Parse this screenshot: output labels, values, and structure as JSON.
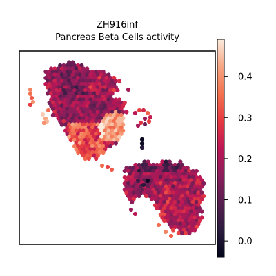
{
  "chart_data": {
    "type": "scatter",
    "subtype": "spatial-hexbin",
    "title": "ZH916inf",
    "subtitle": "Pancreas Beta Cells activity",
    "xlabel": "",
    "ylabel": "",
    "frame_ticks": false,
    "grid": false,
    "legend": "colorbar-right",
    "colormap": "rocket",
    "colorbar": {
      "range": [
        -0.04,
        0.49
      ],
      "ticks": [
        0.0,
        0.1,
        0.2,
        0.3,
        0.4
      ],
      "tick_labels": [
        "0.0",
        "0.1",
        "0.2",
        "0.3",
        "0.4"
      ]
    },
    "regions": [
      {
        "name": "upper tissue lobe",
        "activity_min": -0.04,
        "activity_max": 0.49,
        "dominant_activity": 0.2,
        "high_activity_edge": "right and lower margins"
      },
      {
        "name": "lower tissue lobe",
        "activity_min": -0.04,
        "activity_max": 0.43,
        "dominant_activity": 0.18,
        "high_activity_edge": "lower-left and right margins"
      }
    ]
  }
}
